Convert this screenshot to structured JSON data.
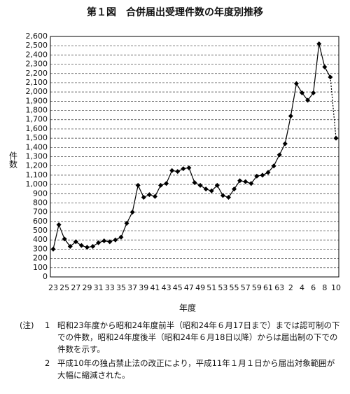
{
  "chart_data": {
    "type": "line",
    "title": "第１図　合併届出受理件数の年度別推移",
    "y_label": "件数",
    "x_label": "年度",
    "categories": [
      "23",
      null,
      "25",
      null,
      "27",
      null,
      "29",
      null,
      "31",
      null,
      "33",
      null,
      "35",
      null,
      "37",
      null,
      "39",
      null,
      "41",
      null,
      "43",
      null,
      "45",
      null,
      "47",
      null,
      "49",
      null,
      "51",
      null,
      "53",
      null,
      "55",
      null,
      "57",
      null,
      "59",
      null,
      "61",
      null,
      "63",
      null,
      "2",
      null,
      "4",
      null,
      "6",
      null,
      "8",
      null,
      "10"
    ],
    "series": [
      {
        "color": "#000000",
        "values": [
          300,
          565,
          410,
          330,
          380,
          340,
          320,
          330,
          370,
          390,
          380,
          400,
          430,
          580,
          700,
          990,
          860,
          890,
          870,
          990,
          1010,
          1150,
          1140,
          1170,
          1180,
          1020,
          990,
          950,
          930,
          990,
          880,
          860,
          950,
          1040,
          1030,
          1010,
          1090,
          1100,
          1130,
          1200,
          1320,
          1440,
          1740,
          2090,
          1990,
          1910,
          1990,
          2520,
          2270,
          2160,
          1500
        ]
      }
    ],
    "dashed_last_segment": true,
    "ylim": [
      0,
      2600
    ],
    "yticks": [
      0,
      100,
      200,
      300,
      400,
      500,
      600,
      700,
      800,
      900,
      {
        "value": 1000,
        "label": "1,000"
      },
      {
        "value": 1100,
        "label": "1,100"
      },
      {
        "value": 1200,
        "label": "1,200"
      },
      {
        "value": 1300,
        "label": "1,300"
      },
      {
        "value": 1400,
        "label": "1,400"
      },
      {
        "value": 1500,
        "label": "1,500"
      },
      {
        "value": 1600,
        "label": "1,600"
      },
      {
        "value": 1700,
        "label": "1,700"
      },
      {
        "value": 1800,
        "label": "1,800"
      },
      {
        "value": 1900,
        "label": "1,900"
      },
      {
        "value": 2000,
        "label": "2,000"
      },
      {
        "value": 2100,
        "label": "2,100"
      },
      {
        "value": 2200,
        "label": "2,200"
      },
      {
        "value": 2300,
        "label": "2,300"
      },
      {
        "value": 2400,
        "label": "2,400"
      },
      {
        "value": 2500,
        "label": "2,500"
      },
      {
        "value": 2600,
        "label": "2,600"
      }
    ],
    "grid": true,
    "notes": {
      "prefix": "(注)",
      "items": [
        {
          "number": "1",
          "text": "昭和23年度から昭和24年度前半（昭和24年６月17日まで）までは認可制の下での件数，昭和24年度後半（昭和24年６月18日以降）からは届出制の下での件数を示す。"
        },
        {
          "number": "2",
          "text": "平成10年の独占禁止法の改正により，平成11年１月１日から届出対象範囲が大幅に縮減された。"
        }
      ]
    }
  }
}
